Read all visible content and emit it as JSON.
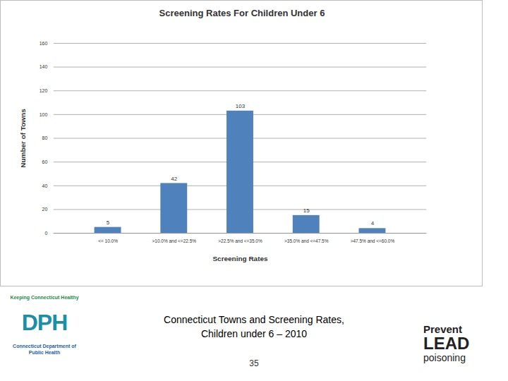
{
  "chart_data": {
    "type": "bar",
    "title": "Screening Rates For Children Under 6",
    "x_label": "Screening Rates",
    "y_label": "Number of Towns",
    "categories": [
      "<= 10.0%",
      ">10.0% and <=22.5%",
      ">22.5% and <=35.0%",
      ">35.0% and <=47.5%",
      ">47.5% and <=60.0%"
    ],
    "values": [
      5,
      42,
      103,
      15,
      4
    ],
    "color": "#4f81bd",
    "ylim": [
      0,
      160
    ],
    "yticks": [
      0,
      20,
      40,
      60,
      80,
      100,
      120,
      140,
      160
    ],
    "grid": true,
    "data_labels": true,
    "annotations": {
      "caption": [
        "Connecticut Towns and Screening Rates,",
        "Children under 6 – 2010"
      ],
      "page_number": "35",
      "dph_logo": [
        "Keeping Connecticut Healthy",
        "DPH",
        "Connecticut Department of Public Health"
      ],
      "lead_logo": [
        "Prevent",
        "LEAD",
        "poisoning"
      ]
    }
  }
}
